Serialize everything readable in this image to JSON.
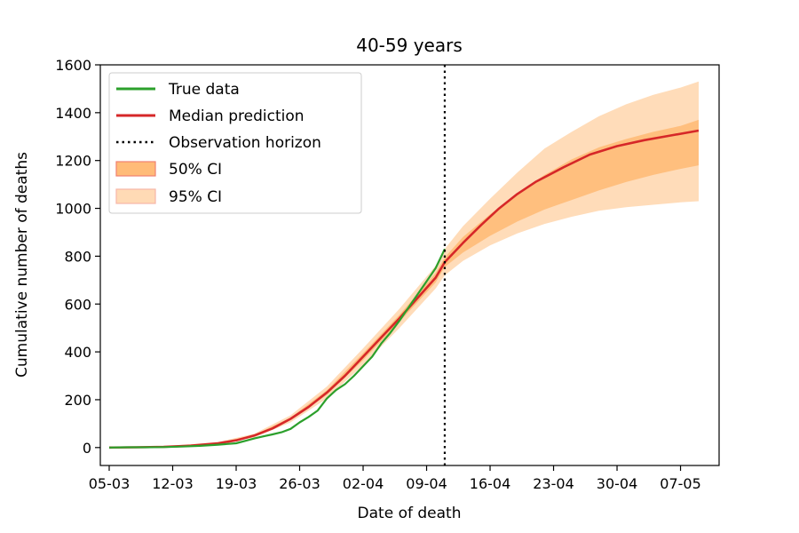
{
  "chart_data": {
    "type": "line",
    "title": "40-59 years",
    "xlabel": "Date of death",
    "ylabel": "Cumulative number of deaths",
    "x_start": "05-03",
    "x_ticks": [
      "05-03",
      "12-03",
      "19-03",
      "26-03",
      "02-04",
      "09-04",
      "16-04",
      "23-04",
      "30-04",
      "07-05"
    ],
    "y_ticks": [
      0,
      200,
      400,
      600,
      800,
      1000,
      1200,
      1400,
      1600
    ],
    "ylim": [
      -75,
      1600
    ],
    "observation_horizon": "11-04",
    "legend_position": "top-left",
    "legend": {
      "true_data": "True data",
      "median": "Median prediction",
      "horizon": "Observation horizon",
      "ci50": "50% CI",
      "ci95": "95% CI"
    },
    "colors": {
      "true_data": "#2ca02c",
      "median": "#d62728",
      "ci50": "#ffbb78",
      "ci95": "#ffdab5"
    },
    "series": [
      {
        "name": "True data",
        "x": [
          "05-03",
          "07-03",
          "09-03",
          "11-03",
          "13-03",
          "15-03",
          "17-03",
          "19-03",
          "20-03",
          "21-03",
          "22-03",
          "23-03",
          "24-03",
          "25-03",
          "26-03",
          "27-03",
          "28-03",
          "29-03",
          "30-03",
          "31-03",
          "01-04",
          "02-04",
          "03-04",
          "04-04",
          "05-04",
          "06-04",
          "07-04",
          "08-04",
          "09-04",
          "10-04",
          "11-04"
        ],
        "y": [
          0,
          1,
          1,
          2,
          4,
          7,
          12,
          18,
          28,
          38,
          47,
          55,
          64,
          78,
          105,
          128,
          155,
          205,
          240,
          265,
          300,
          340,
          380,
          435,
          480,
          530,
          585,
          640,
          695,
          750,
          830
        ]
      },
      {
        "name": "Median prediction",
        "x": [
          "05-03",
          "08-03",
          "11-03",
          "14-03",
          "17-03",
          "19-03",
          "21-03",
          "23-03",
          "25-03",
          "27-03",
          "29-03",
          "31-03",
          "02-04",
          "04-04",
          "06-04",
          "08-04",
          "10-04",
          "11-04",
          "13-04",
          "15-04",
          "17-04",
          "19-04",
          "21-04",
          "24-04",
          "27-04",
          "30-04",
          "03-05",
          "06-05",
          "09-05"
        ],
        "y": [
          0,
          1,
          3,
          8,
          18,
          30,
          50,
          80,
          120,
          170,
          230,
          300,
          380,
          460,
          540,
          625,
          710,
          775,
          855,
          930,
          1000,
          1060,
          1110,
          1170,
          1225,
          1260,
          1285,
          1305,
          1325
        ]
      },
      {
        "name": "50% CI",
        "x": [
          "05-03",
          "11-03",
          "17-03",
          "21-03",
          "25-03",
          "29-03",
          "02-04",
          "06-04",
          "10-04",
          "11-04",
          "13-04",
          "16-04",
          "19-04",
          "22-04",
          "25-04",
          "28-04",
          "01-05",
          "04-05",
          "07-05",
          "09-05"
        ],
        "lower": [
          0,
          3,
          17,
          47,
          115,
          220,
          365,
          525,
          690,
          755,
          815,
          885,
          945,
          995,
          1035,
          1075,
          1110,
          1140,
          1165,
          1180
        ],
        "upper": [
          0,
          4,
          20,
          53,
          125,
          240,
          395,
          555,
          730,
          795,
          880,
          975,
          1060,
          1140,
          1205,
          1255,
          1290,
          1320,
          1345,
          1370
        ]
      },
      {
        "name": "95% CI",
        "x": [
          "05-03",
          "11-03",
          "17-03",
          "21-03",
          "25-03",
          "29-03",
          "02-04",
          "06-04",
          "10-04",
          "11-04",
          "13-04",
          "16-04",
          "19-04",
          "22-04",
          "25-04",
          "28-04",
          "01-05",
          "04-05",
          "07-05",
          "09-05"
        ],
        "lower": [
          0,
          2,
          15,
          42,
          105,
          205,
          345,
          500,
          665,
          720,
          780,
          845,
          895,
          935,
          965,
          990,
          1005,
          1015,
          1025,
          1030
        ],
        "upper": [
          0,
          5,
          23,
          58,
          135,
          255,
          415,
          580,
          760,
          830,
          925,
          1040,
          1150,
          1250,
          1320,
          1385,
          1435,
          1475,
          1505,
          1530
        ]
      }
    ]
  }
}
